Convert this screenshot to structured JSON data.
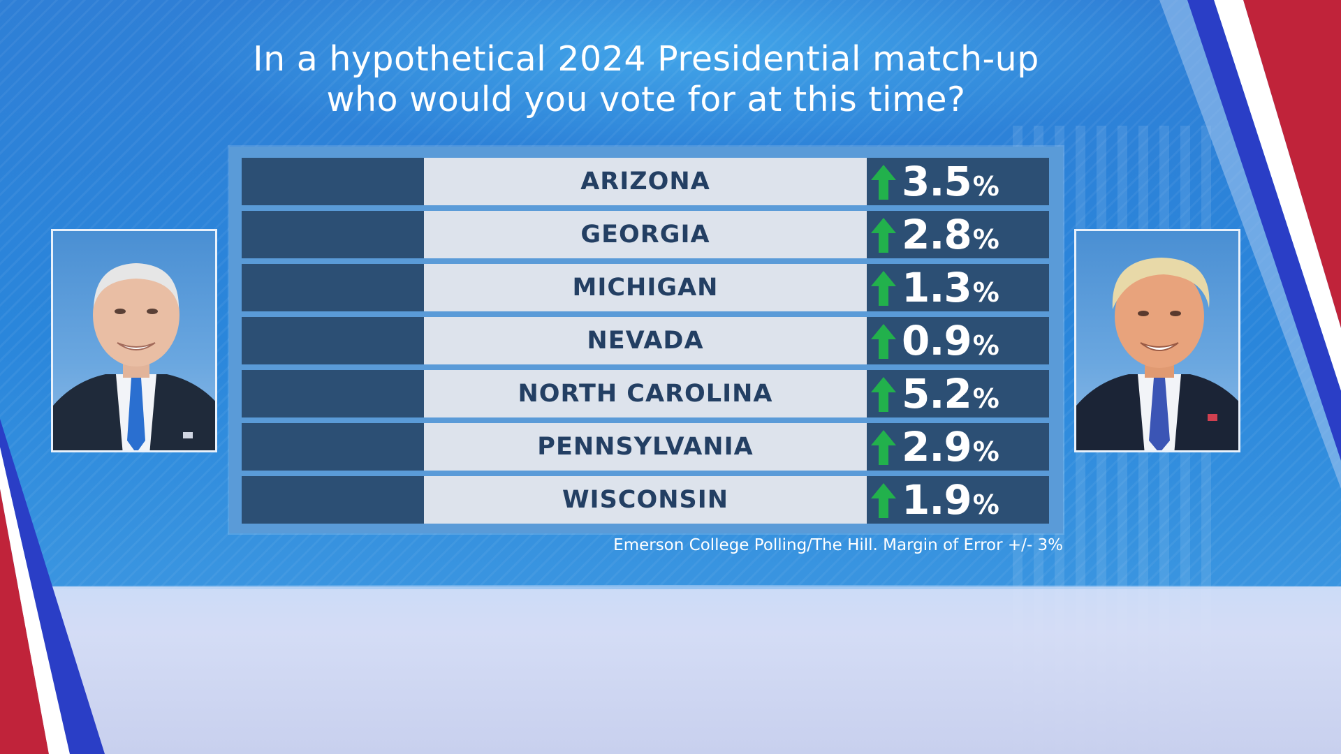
{
  "title": {
    "line1": "In a hypothetical 2024 Presidential match-up",
    "line2": "who would you vote for at this time?"
  },
  "rows": [
    {
      "state": "ARIZONA",
      "value": "3.5",
      "unit": "%",
      "direction": "up"
    },
    {
      "state": "GEORGIA",
      "value": "2.8",
      "unit": "%",
      "direction": "up"
    },
    {
      "state": "MICHIGAN",
      "value": "1.3",
      "unit": "%",
      "direction": "up"
    },
    {
      "state": "NEVADA",
      "value": "0.9",
      "unit": "%",
      "direction": "up"
    },
    {
      "state": "NORTH CAROLINA",
      "value": "5.2",
      "unit": "%",
      "direction": "up"
    },
    {
      "state": "PENNSYLVANIA",
      "value": "2.9",
      "unit": "%",
      "direction": "up"
    },
    {
      "state": "WISCONSIN",
      "value": "1.9",
      "unit": "%",
      "direction": "up"
    }
  ],
  "source": "Emerson College Polling/The Hill. Margin of Error +/- 3%",
  "icons": {
    "trend": "up-arrow-icon"
  },
  "colors": {
    "arrow": "#22b14c",
    "row_dark": "#2c4f74",
    "row_light": "#dde3ec",
    "text_dark": "#233f63"
  }
}
